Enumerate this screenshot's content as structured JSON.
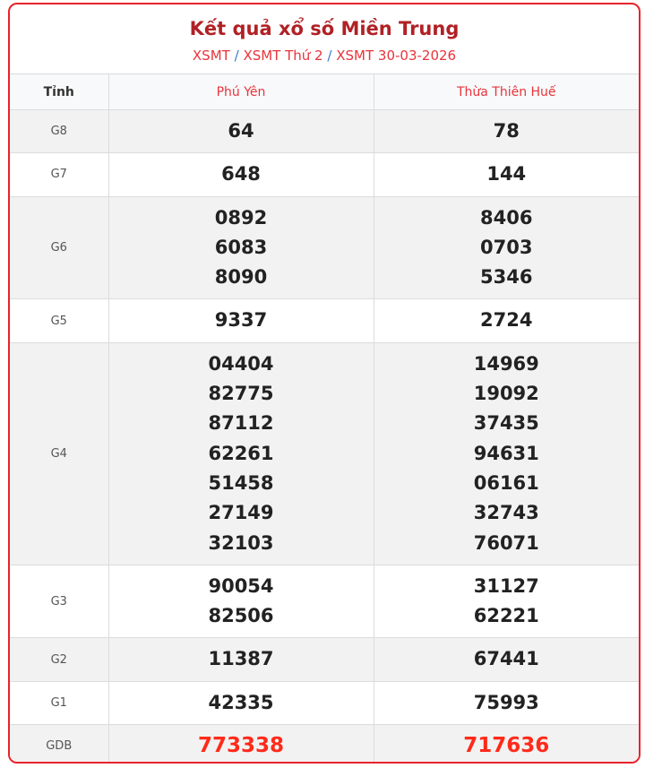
{
  "header": {
    "title": "Kết quả xổ số Miền Trung",
    "breadcrumb": [
      "XSMT",
      "XSMT Thứ 2",
      "XSMT 30-03-2026"
    ],
    "separator": "/"
  },
  "table": {
    "columns": [
      "Tỉnh",
      "Phú Yên",
      "Thừa Thiên Huế"
    ],
    "rows": [
      {
        "label": "G8",
        "a": [
          "64"
        ],
        "b": [
          "78"
        ]
      },
      {
        "label": "G7",
        "a": [
          "648"
        ],
        "b": [
          "144"
        ]
      },
      {
        "label": "G6",
        "a": [
          "0892",
          "6083",
          "8090"
        ],
        "b": [
          "8406",
          "0703",
          "5346"
        ]
      },
      {
        "label": "G5",
        "a": [
          "9337"
        ],
        "b": [
          "2724"
        ]
      },
      {
        "label": "G4",
        "a": [
          "04404",
          "82775",
          "87112",
          "62261",
          "51458",
          "27149",
          "32103"
        ],
        "b": [
          "14969",
          "19092",
          "37435",
          "94631",
          "06161",
          "32743",
          "76071"
        ]
      },
      {
        "label": "G3",
        "a": [
          "90054",
          "82506"
        ],
        "b": [
          "31127",
          "62221"
        ]
      },
      {
        "label": "G2",
        "a": [
          "11387"
        ],
        "b": [
          "67441"
        ]
      },
      {
        "label": "G1",
        "a": [
          "42335"
        ],
        "b": [
          "75993"
        ]
      },
      {
        "label": "GDB",
        "a": [
          "773338"
        ],
        "b": [
          "717636"
        ]
      }
    ]
  },
  "colors": {
    "border": "#e8232b",
    "title": "#b02125",
    "special_prize": "#ff2a1a"
  }
}
